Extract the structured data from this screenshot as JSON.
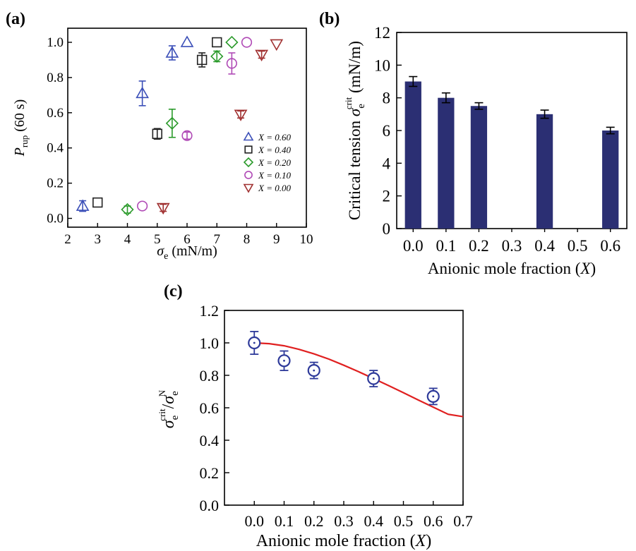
{
  "panels": {
    "a": {
      "label": "(a)"
    },
    "b": {
      "label": "(b)"
    },
    "c": {
      "label": "(c)"
    }
  },
  "chart_data": [
    {
      "id": "a",
      "type": "scatter",
      "title": "",
      "xlabel_symbol": "σ",
      "xlabel_sub": "e",
      "xlabel_unit": " (mN/m)",
      "ylabel_symbol": "P",
      "ylabel_sub": "rup",
      "ylabel_suffix": " (60 s)",
      "xlim": [
        2,
        10
      ],
      "ylim": [
        -0.05,
        1.08
      ],
      "xticks": [
        2,
        3,
        4,
        5,
        6,
        7,
        8,
        9,
        10
      ],
      "yticks": [
        0.0,
        0.2,
        0.4,
        0.6,
        0.8,
        1.0
      ],
      "legend_position": "right",
      "series": [
        {
          "name": "X = 0.60",
          "marker": "triangle-up",
          "color": "#3b4fb8",
          "points": [
            {
              "x": 2.5,
              "y": 0.07,
              "err": 0.03
            },
            {
              "x": 4.5,
              "y": 0.71,
              "err": 0.07
            },
            {
              "x": 5.5,
              "y": 0.94,
              "err": 0.04
            },
            {
              "x": 6.0,
              "y": 1.0,
              "err": 0
            }
          ]
        },
        {
          "name": "X = 0.40",
          "marker": "square",
          "color": "#222222",
          "points": [
            {
              "x": 3.0,
              "y": 0.09,
              "err": 0
            },
            {
              "x": 5.0,
              "y": 0.48,
              "err": 0.03
            },
            {
              "x": 6.5,
              "y": 0.9,
              "err": 0.04
            },
            {
              "x": 7.0,
              "y": 1.0,
              "err": 0
            }
          ]
        },
        {
          "name": "X = 0.20",
          "marker": "diamond",
          "color": "#2a9a2a",
          "points": [
            {
              "x": 4.0,
              "y": 0.05,
              "err": 0.02
            },
            {
              "x": 5.5,
              "y": 0.54,
              "err": 0.08
            },
            {
              "x": 7.0,
              "y": 0.92,
              "err": 0.03
            },
            {
              "x": 7.5,
              "y": 1.0,
              "err": 0
            }
          ]
        },
        {
          "name": "X = 0.10",
          "marker": "circle",
          "color": "#b04ab6",
          "points": [
            {
              "x": 4.5,
              "y": 0.07,
              "err": 0
            },
            {
              "x": 6.0,
              "y": 0.47,
              "err": 0.02
            },
            {
              "x": 7.5,
              "y": 0.88,
              "err": 0.06
            },
            {
              "x": 8.0,
              "y": 1.0,
              "err": 0
            }
          ]
        },
        {
          "name": "X = 0.00",
          "marker": "triangle-down",
          "color": "#a03030",
          "points": [
            {
              "x": 5.2,
              "y": 0.06,
              "err": 0.02
            },
            {
              "x": 7.8,
              "y": 0.59,
              "err": 0.02
            },
            {
              "x": 8.5,
              "y": 0.93,
              "err": 0.02
            },
            {
              "x": 9.0,
              "y": 0.99,
              "err": 0
            }
          ]
        }
      ]
    },
    {
      "id": "b",
      "type": "bar",
      "title": "",
      "xlabel_text": "Anionic mole fraction (",
      "xlabel_symbol": "X",
      "xlabel_close": ")",
      "ylabel_text": "Critical tension ",
      "ylabel_symbol": "σ",
      "ylabel_sub": "e",
      "ylabel_sup": "crit",
      "ylabel_unit": " (mN/m)",
      "ylim": [
        0,
        12
      ],
      "yticks": [
        0,
        2,
        4,
        6,
        8,
        10,
        12
      ],
      "categories": [
        "0.0",
        "0.1",
        "0.2",
        "0.3",
        "0.4",
        "0.5",
        "0.6"
      ],
      "values": [
        9.0,
        8.0,
        7.5,
        null,
        7.0,
        null,
        6.0
      ],
      "errors": [
        0.3,
        0.3,
        0.2,
        null,
        0.25,
        null,
        0.2
      ],
      "bar_color": "#2b2f73"
    },
    {
      "id": "c",
      "type": "scatter",
      "title": "",
      "xlabel_text": "Anionic mole fraction (",
      "xlabel_symbol": "X",
      "xlabel_close": ")",
      "ylabel_symbol": "σ",
      "ylabel_sub": "e",
      "ylabel_sup": "crit",
      "ylabel_slash": "/",
      "ylabel_sup2": "N",
      "xlim": [
        -0.1,
        0.7
      ],
      "ylim": [
        0.0,
        1.2
      ],
      "xticks": [
        0.0,
        0.1,
        0.2,
        0.3,
        0.4,
        0.5,
        0.6,
        0.7
      ],
      "yticks": [
        0.0,
        0.2,
        0.4,
        0.6,
        0.8,
        1.0,
        1.2
      ],
      "marker_color": "#2e3a9a",
      "points": [
        {
          "x": 0.0,
          "y": 1.0,
          "err": 0.07
        },
        {
          "x": 0.1,
          "y": 0.89,
          "err": 0.06
        },
        {
          "x": 0.2,
          "y": 0.83,
          "err": 0.05
        },
        {
          "x": 0.4,
          "y": 0.78,
          "err": 0.05
        },
        {
          "x": 0.6,
          "y": 0.67,
          "err": 0.05
        }
      ],
      "fit_color": "#e02020",
      "fit": [
        {
          "x": 0.0,
          "y": 1.0
        },
        {
          "x": 0.05,
          "y": 0.995
        },
        {
          "x": 0.1,
          "y": 0.982
        },
        {
          "x": 0.15,
          "y": 0.96
        },
        {
          "x": 0.2,
          "y": 0.932
        },
        {
          "x": 0.25,
          "y": 0.9
        },
        {
          "x": 0.3,
          "y": 0.862
        },
        {
          "x": 0.35,
          "y": 0.822
        },
        {
          "x": 0.4,
          "y": 0.78
        },
        {
          "x": 0.45,
          "y": 0.737
        },
        {
          "x": 0.5,
          "y": 0.693
        },
        {
          "x": 0.55,
          "y": 0.648
        },
        {
          "x": 0.6,
          "y": 0.604
        },
        {
          "x": 0.65,
          "y": 0.56
        },
        {
          "x": 0.7,
          "y": 0.545
        }
      ]
    }
  ]
}
